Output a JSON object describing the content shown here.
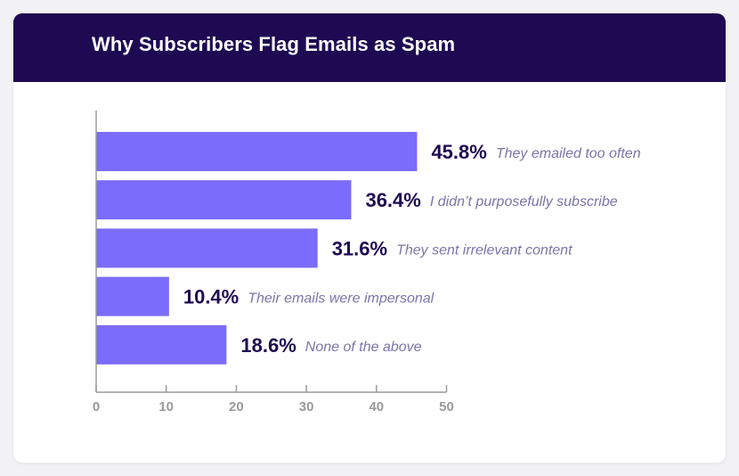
{
  "colors": {
    "header_bg": "#1d0a52",
    "bar": "#7b6cfb",
    "value_text": "#1d0a52",
    "category_text": "#7a75a8",
    "axis": "#9a9a9a"
  },
  "chart_data": {
    "type": "bar",
    "orientation": "horizontal",
    "title": "Why Subscribers Flag Emails as Spam",
    "categories": [
      "They emailed too often",
      "I didn’t purposefully subscribe",
      "They sent irrelevant content",
      "Their emails were impersonal",
      "None of the above"
    ],
    "values": [
      45.8,
      36.4,
      31.6,
      10.4,
      18.6
    ],
    "value_labels": [
      "45.8%",
      "36.4%",
      "31.6%",
      "10.4%",
      "18.6%"
    ],
    "xlim": [
      0,
      50
    ],
    "x_ticks": [
      0,
      10,
      20,
      30,
      40,
      50
    ],
    "xlabel": "",
    "ylabel": "",
    "grid": false,
    "legend": "none"
  }
}
